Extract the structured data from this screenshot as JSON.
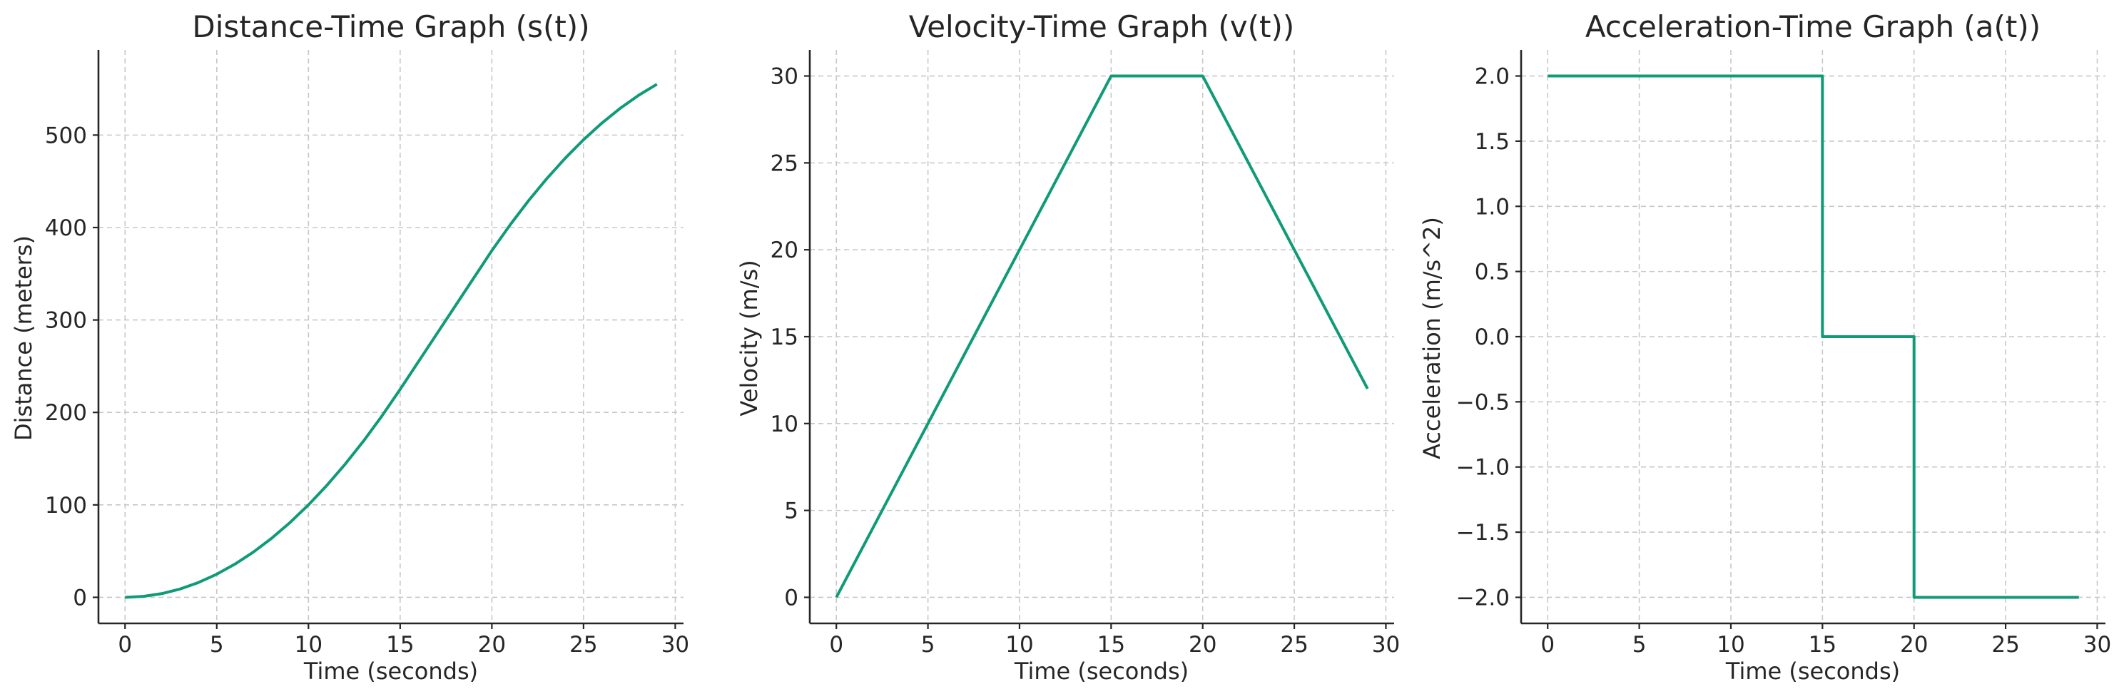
{
  "colors": {
    "series": "#109b77",
    "axis": "#262626",
    "grid": "#c8c8c8"
  },
  "chart_data": [
    {
      "type": "line",
      "title": "Distance-Time Graph (s(t))",
      "xlabel": "Time (seconds)",
      "ylabel": "Distance (meters)",
      "xlim": [
        -1.45,
        30.45
      ],
      "ylim": [
        -28.2,
        592.1
      ],
      "xticks": [
        0,
        5,
        10,
        15,
        20,
        25,
        30
      ],
      "yticks": [
        0,
        100,
        200,
        300,
        400,
        500
      ],
      "xtick_labels": [
        "0",
        "5",
        "10",
        "15",
        "20",
        "25",
        "30"
      ],
      "ytick_labels": [
        "0",
        "100",
        "200",
        "300",
        "400",
        "500"
      ],
      "grid": true,
      "series": [
        {
          "x": [
            0,
            1,
            2,
            3,
            4,
            5,
            6,
            7,
            8,
            9,
            10,
            11,
            12,
            13,
            14,
            15,
            16,
            17,
            18,
            19,
            20,
            21,
            22,
            23,
            24,
            25,
            26,
            27,
            28,
            29
          ],
          "values": [
            0,
            1,
            4,
            9,
            16,
            25,
            36,
            49,
            64,
            81,
            100,
            121,
            144,
            169,
            196,
            225,
            255,
            285,
            315,
            345,
            375,
            403,
            429,
            453,
            475,
            495,
            513,
            529,
            543,
            555
          ]
        }
      ]
    },
    {
      "type": "line",
      "title": "Velocity-Time Graph (v(t))",
      "xlabel": "Time (seconds)",
      "ylabel": "Velocity (m/s)",
      "xlim": [
        -1.45,
        30.45
      ],
      "ylim": [
        -1.5,
        31.5
      ],
      "xticks": [
        0,
        5,
        10,
        15,
        20,
        25,
        30
      ],
      "yticks": [
        0,
        5,
        10,
        15,
        20,
        25,
        30
      ],
      "xtick_labels": [
        "0",
        "5",
        "10",
        "15",
        "20",
        "25",
        "30"
      ],
      "ytick_labels": [
        "0",
        "5",
        "10",
        "15",
        "20",
        "25",
        "30"
      ],
      "grid": true,
      "series": [
        {
          "x": [
            0,
            15,
            20,
            29
          ],
          "values": [
            0,
            30,
            30,
            12
          ]
        }
      ]
    },
    {
      "type": "line",
      "title": "Acceleration-Time Graph (a(t))",
      "xlabel": "Time (seconds)",
      "ylabel": "Acceleration (m/s^2)",
      "xlim": [
        -1.45,
        30.45
      ],
      "ylim": [
        -2.2,
        2.2
      ],
      "xticks": [
        0,
        5,
        10,
        15,
        20,
        25,
        30
      ],
      "yticks": [
        -2.0,
        -1.5,
        -1.0,
        -0.5,
        0.0,
        0.5,
        1.0,
        1.5,
        2.0
      ],
      "xtick_labels": [
        "0",
        "5",
        "10",
        "15",
        "20",
        "25",
        "30"
      ],
      "ytick_labels": [
        "−2.0",
        "−1.5",
        "−1.0",
        "−0.5",
        "0.0",
        "0.5",
        "1.0",
        "1.5",
        "2.0"
      ],
      "grid": true,
      "series": [
        {
          "x": [
            0,
            15,
            15,
            20,
            20,
            29
          ],
          "values": [
            2,
            2,
            0,
            0,
            -2,
            -2
          ]
        }
      ]
    }
  ]
}
